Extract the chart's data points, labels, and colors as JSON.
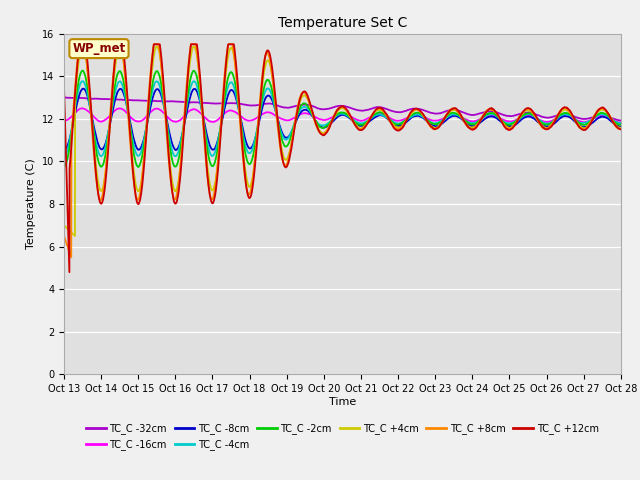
{
  "title": "Temperature Set C",
  "xlabel": "Time",
  "ylabel": "Temperature (C)",
  "ylim": [
    0,
    16
  ],
  "yticks": [
    0,
    2,
    4,
    6,
    8,
    10,
    12,
    14,
    16
  ],
  "plot_bg": "#e0e0e0",
  "fig_bg": "#f0f0f0",
  "series_order": [
    "TC_C -32cm",
    "TC_C -16cm",
    "TC_C -8cm",
    "TC_C -4cm",
    "TC_C -2cm",
    "TC_C +4cm",
    "TC_C +8cm",
    "TC_C +12cm"
  ],
  "series": {
    "TC_C -32cm": {
      "color": "#aa00cc",
      "lw": 1.3
    },
    "TC_C -16cm": {
      "color": "#ff00ff",
      "lw": 1.3
    },
    "TC_C -8cm": {
      "color": "#0000cc",
      "lw": 1.3
    },
    "TC_C -4cm": {
      "color": "#00cccc",
      "lw": 1.3
    },
    "TC_C -2cm": {
      "color": "#00cc00",
      "lw": 1.3
    },
    "TC_C +4cm": {
      "color": "#cccc00",
      "lw": 1.3
    },
    "TC_C +8cm": {
      "color": "#ff8800",
      "lw": 1.3
    },
    "TC_C +12cm": {
      "color": "#cc0000",
      "lw": 1.3
    }
  },
  "wp_met_box": {
    "text": "WP_met",
    "facecolor": "#ffffcc",
    "edgecolor": "#bb8800",
    "textcolor": "#880000"
  },
  "xtick_labels": [
    "Oct 13",
    "Oct 14",
    "Oct 15",
    "Oct 16",
    "Oct 17",
    "Oct 18",
    "Oct 19",
    "Oct 20",
    "Oct 21",
    "Oct 22",
    "Oct 23",
    "Oct 24",
    "Oct 25",
    "Oct 26",
    "Oct 27",
    "Oct 28"
  ],
  "legend_ncol": 6
}
